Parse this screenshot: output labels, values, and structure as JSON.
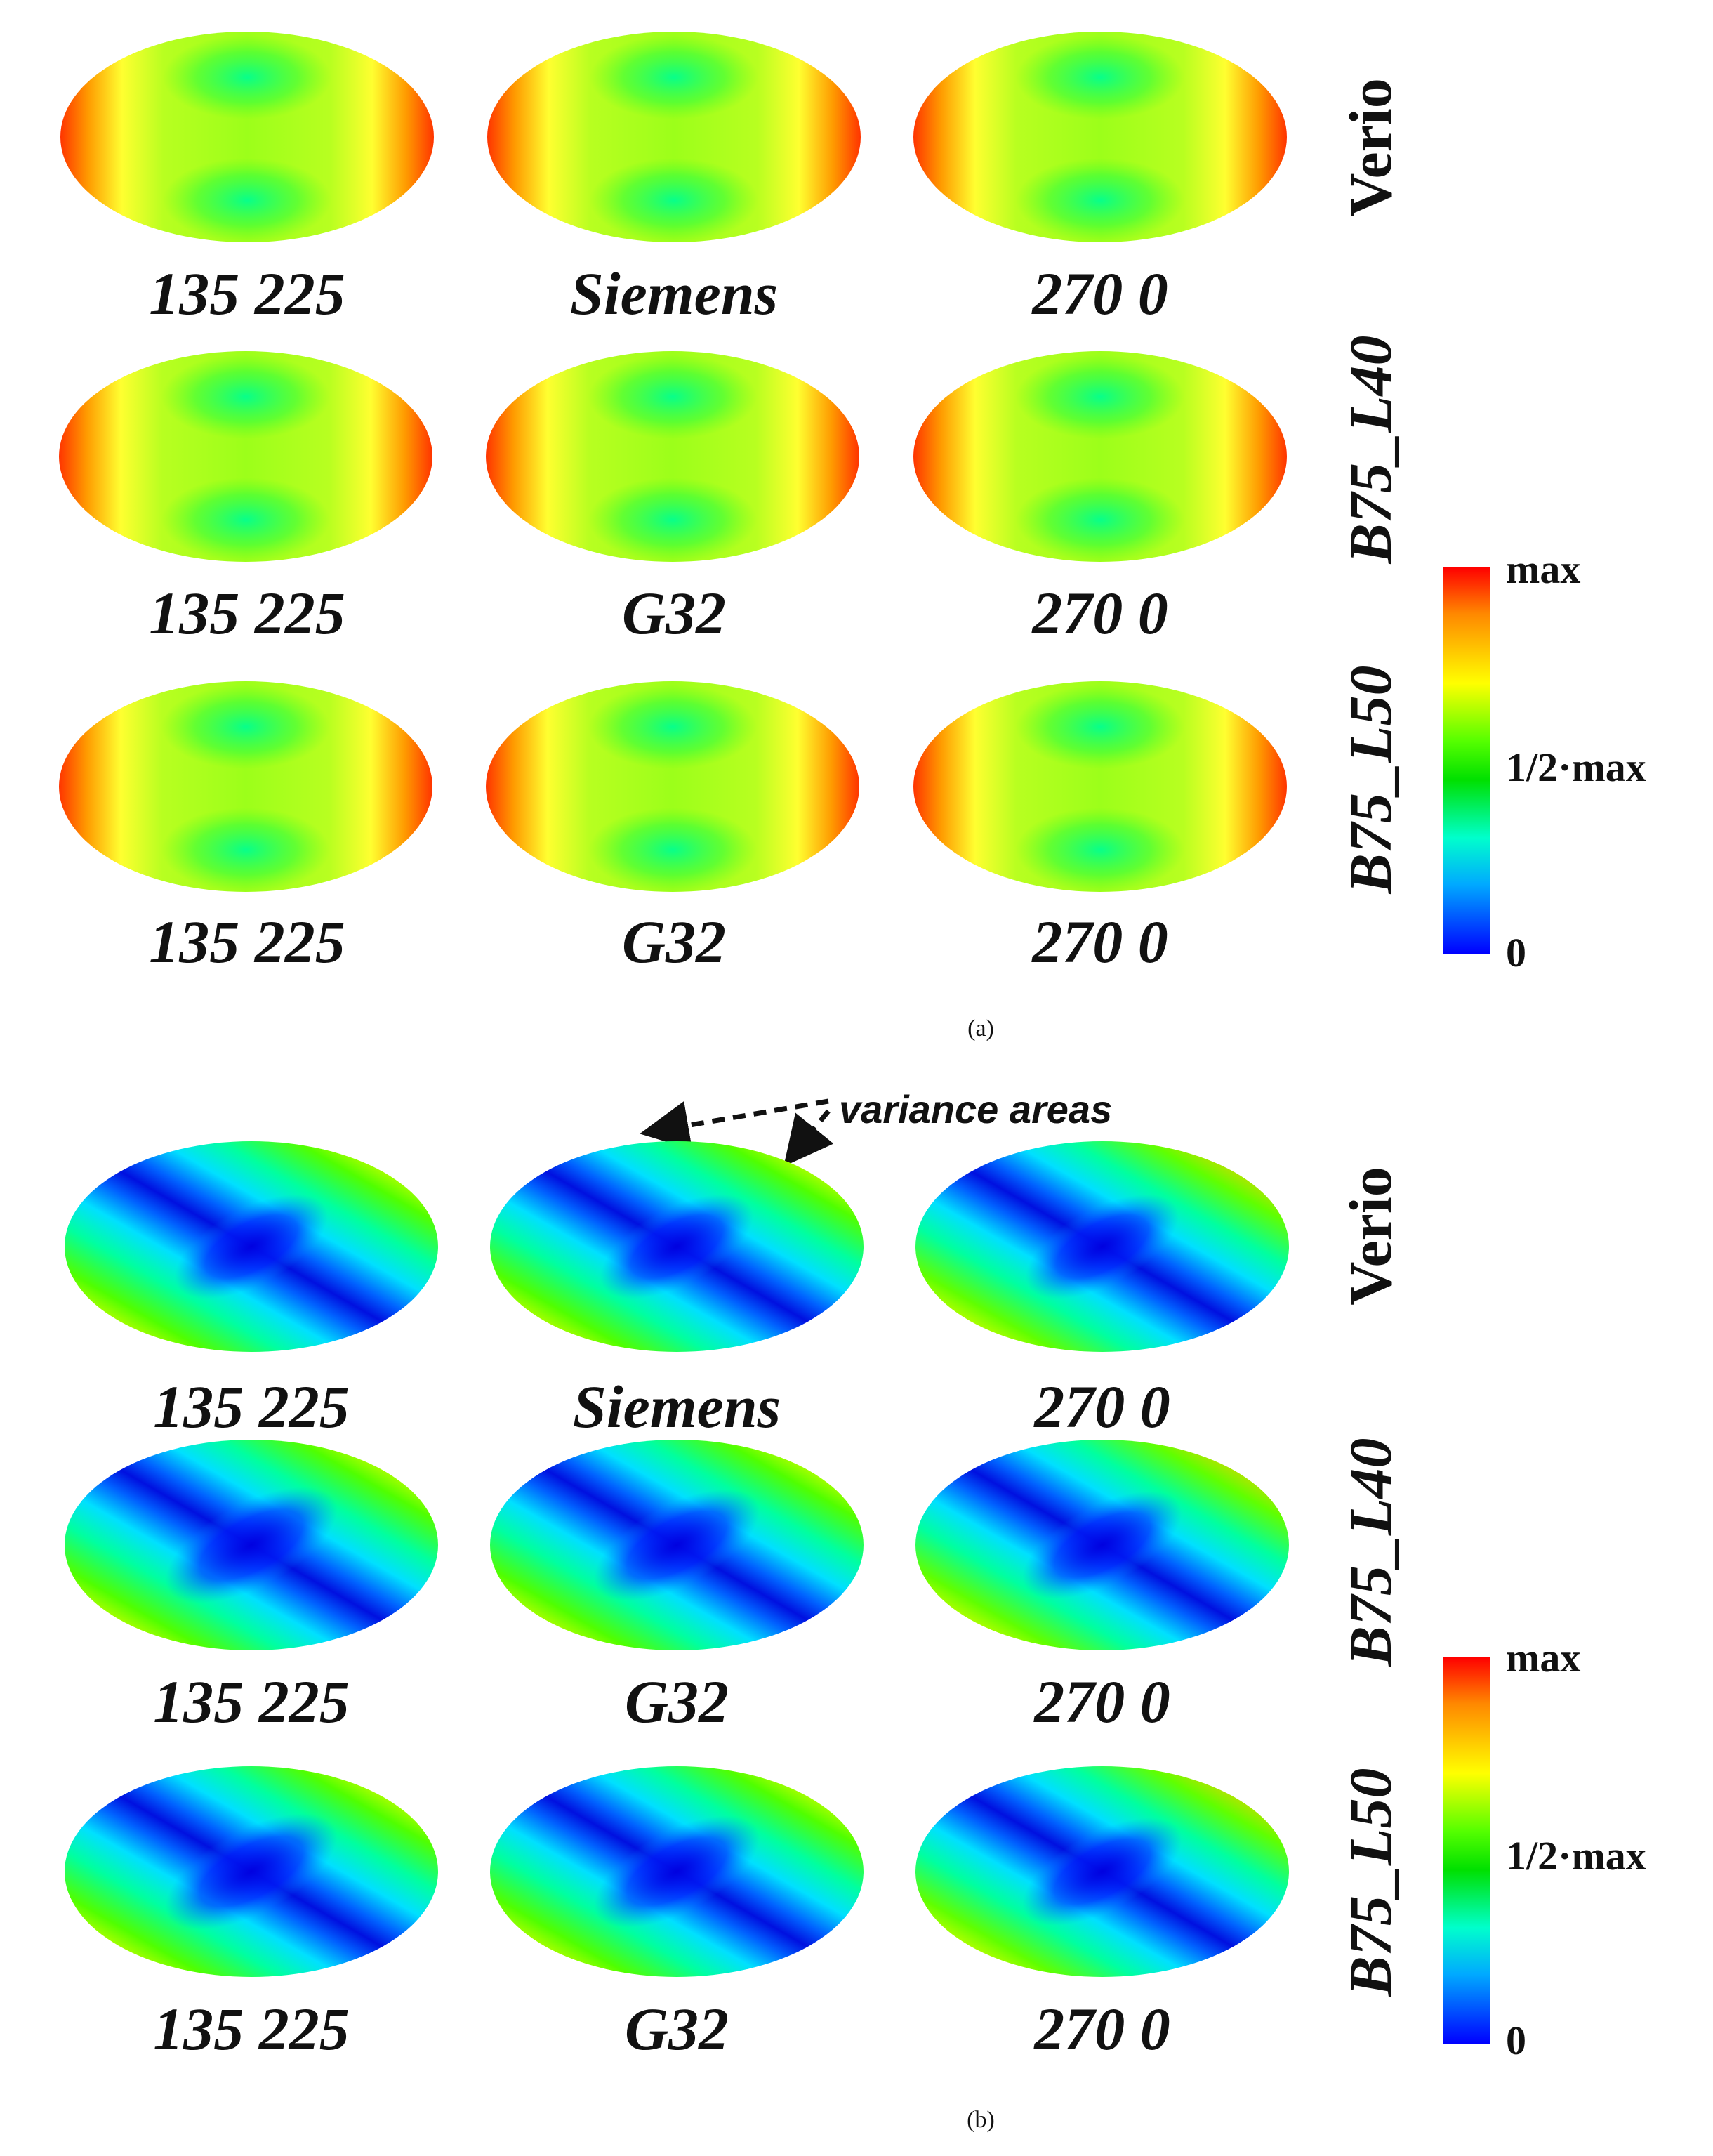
{
  "figure": {
    "panels": [
      {
        "id": "a",
        "caption": "(a)",
        "column_labels": [
          [
            "135 225",
            "Siemens",
            "270 0"
          ],
          [
            "135 225",
            "G32",
            "270 0"
          ],
          [
            "135 225",
            "G32",
            "270 0"
          ]
        ],
        "row_labels": [
          "Verio",
          "B75_L40",
          "B75_L50"
        ],
        "colorbar": {
          "max_label": "max",
          "mid_label": "1/2·max",
          "min_label": "0"
        }
      },
      {
        "id": "b",
        "caption": "(b)",
        "annotation": "variance areas",
        "column_labels": [
          [
            "135 225",
            "Siemens",
            "270 0"
          ],
          [
            "135 225",
            "G32",
            "270 0"
          ],
          [
            "135 225",
            "G32",
            "270 0"
          ]
        ],
        "row_labels": [
          "Verio",
          "B75_L40",
          "B75_L50"
        ],
        "colorbar": {
          "max_label": "max",
          "mid_label": "1/2·max",
          "min_label": "0"
        }
      }
    ],
    "colors": {
      "max": "#ff0000",
      "high": "#ffff00",
      "mid": "#00e000",
      "low": "#00ffff",
      "min": "#0000ff"
    }
  }
}
